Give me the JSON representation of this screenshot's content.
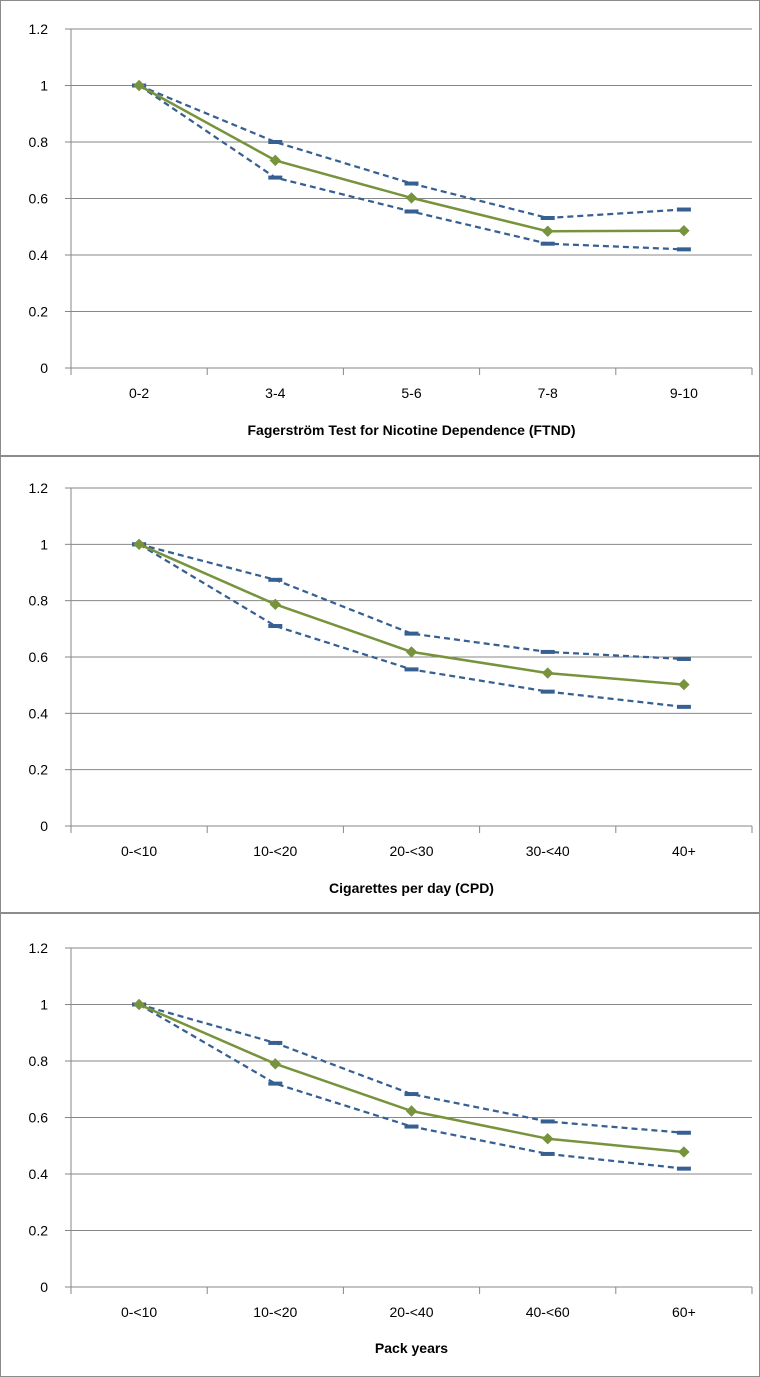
{
  "chart_data": [
    {
      "type": "line",
      "xlabel": "Fagerström Test for Nicotine Dependence (FTND)",
      "ylabel": "",
      "ylim": [
        0,
        1.2
      ],
      "yticks": [
        "0",
        "0.2",
        "0.4",
        "0.6",
        "0.8",
        "1",
        "1.2"
      ],
      "grid": true,
      "legend": "none",
      "categories": [
        "0-2",
        "3-4",
        "5-6",
        "7-8",
        "9-10"
      ],
      "series": [
        {
          "role": "estimate",
          "color": "#77933c",
          "marker": "diamond",
          "dash": "solid",
          "values": [
            1.0,
            0.735,
            0.602,
            0.484,
            0.486
          ]
        },
        {
          "role": "upper",
          "color": "#376092",
          "marker": "dash",
          "dash": "dashed",
          "values": [
            1.0,
            0.8,
            0.653,
            0.531,
            0.561
          ]
        },
        {
          "role": "lower",
          "color": "#376092",
          "marker": "dash",
          "dash": "dashed",
          "values": [
            1.0,
            0.674,
            0.554,
            0.44,
            0.42
          ]
        }
      ]
    },
    {
      "type": "line",
      "xlabel": "Cigarettes per day (CPD)",
      "ylabel": "",
      "ylim": [
        0,
        1.2
      ],
      "yticks": [
        "0",
        "0.2",
        "0.4",
        "0.6",
        "0.8",
        "1",
        "1.2"
      ],
      "grid": true,
      "legend": "none",
      "categories": [
        "0-<10",
        "10-<20",
        "20-<30",
        "30-<40",
        "40+"
      ],
      "series": [
        {
          "role": "estimate",
          "color": "#77933c",
          "marker": "diamond",
          "dash": "solid",
          "values": [
            1.0,
            0.787,
            0.618,
            0.543,
            0.502
          ]
        },
        {
          "role": "upper",
          "color": "#376092",
          "marker": "dash",
          "dash": "dashed",
          "values": [
            1.0,
            0.874,
            0.683,
            0.618,
            0.593
          ]
        },
        {
          "role": "lower",
          "color": "#376092",
          "marker": "dash",
          "dash": "dashed",
          "values": [
            1.0,
            0.71,
            0.556,
            0.477,
            0.423
          ]
        }
      ]
    },
    {
      "type": "line",
      "xlabel": "Pack years",
      "ylabel": "",
      "ylim": [
        0,
        1.2
      ],
      "yticks": [
        "0",
        "0.2",
        "0.4",
        "0.6",
        "0.8",
        "1",
        "1.2"
      ],
      "grid": true,
      "legend": "none",
      "categories": [
        "0-<10",
        "10-<20",
        "20-<40",
        "40-<60",
        "60+"
      ],
      "series": [
        {
          "role": "estimate",
          "color": "#77933c",
          "marker": "diamond",
          "dash": "solid",
          "values": [
            1.0,
            0.79,
            0.623,
            0.525,
            0.478
          ]
        },
        {
          "role": "upper",
          "color": "#376092",
          "marker": "dash",
          "dash": "dashed",
          "values": [
            1.0,
            0.864,
            0.683,
            0.586,
            0.546
          ]
        },
        {
          "role": "lower",
          "color": "#376092",
          "marker": "dash",
          "dash": "dashed",
          "values": [
            1.0,
            0.72,
            0.568,
            0.471,
            0.419
          ]
        }
      ]
    }
  ]
}
